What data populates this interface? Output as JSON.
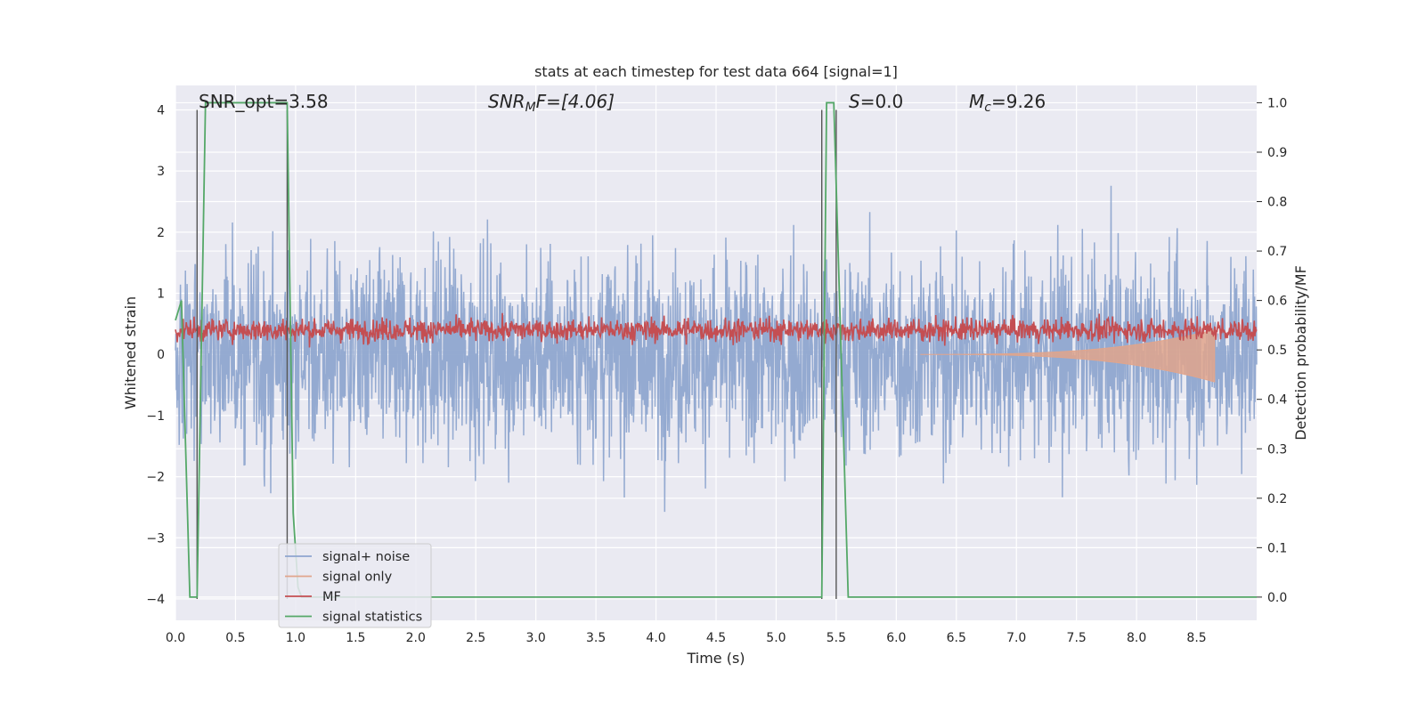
{
  "chart_data": {
    "type": "line",
    "title": "stats at each timestep for test data 664 [signal=1]",
    "xlabel": "Time (s)",
    "ylabel": "Whitened strain",
    "ylabel_right": "Detection probability/MF",
    "xlim": [
      0.0,
      9.0
    ],
    "ylim": [
      -4.35,
      4.4
    ],
    "ylim_right": [
      -0.047,
      1.035
    ],
    "x_ticks": [
      "0.0",
      "0.5",
      "1.0",
      "1.5",
      "2.0",
      "2.5",
      "3.0",
      "3.5",
      "4.0",
      "4.5",
      "5.0",
      "5.5",
      "6.0",
      "6.5",
      "7.0",
      "7.5",
      "8.0",
      "8.5"
    ],
    "y_ticks": [
      "4",
      "3",
      "2",
      "1",
      "0",
      "−1",
      "−2",
      "−3",
      "−4"
    ],
    "y_ticks_right": [
      "1.0",
      "0.9",
      "0.8",
      "0.7",
      "0.6",
      "0.5",
      "0.4",
      "0.3",
      "0.2",
      "0.1",
      "0.0"
    ],
    "grid": true,
    "legend_placement": "lower-left",
    "annotations": {
      "snr_opt": "SNR_opt=3.58",
      "snr_mf_sym": "SNR",
      "snr_mf_sub": "M",
      "snr_mf_rest": "F=[4.06]",
      "s_sym": "S",
      "s_rest": "=0.0",
      "mc_sym": "M",
      "mc_sub": "c",
      "mc_rest": "=9.26"
    },
    "vertical_lines_x": [
      0.18,
      0.93,
      5.38,
      5.5
    ],
    "series": [
      {
        "name": "signal+ noise",
        "color": "#8fa6cf",
        "role": "noise",
        "axis": "left",
        "std": 0.95,
        "x_range": [
          0.0,
          9.0
        ]
      },
      {
        "name": "signal only",
        "color": "#e1a58c",
        "role": "chirp",
        "axis": "left",
        "x_range": [
          0.0,
          8.65
        ],
        "amplitude_end": 0.45
      },
      {
        "name": "MF",
        "color": "#c44e52",
        "role": "mf",
        "axis": "left",
        "mean": 0.4,
        "x_range": [
          0.0,
          9.0
        ]
      },
      {
        "name": "signal statistics",
        "color": "#55a868",
        "role": "stat",
        "axis": "right",
        "x": [
          0.0,
          0.05,
          0.12,
          0.18,
          0.25,
          0.93,
          0.98,
          1.02,
          1.05,
          5.32,
          5.38,
          5.42,
          5.48,
          5.6,
          9.0
        ],
        "y": [
          0.56,
          0.6,
          0.0,
          0.0,
          1.0,
          1.0,
          0.17,
          0.02,
          0.0,
          0.0,
          0.0,
          1.0,
          1.0,
          0.0,
          0.0
        ]
      }
    ]
  }
}
